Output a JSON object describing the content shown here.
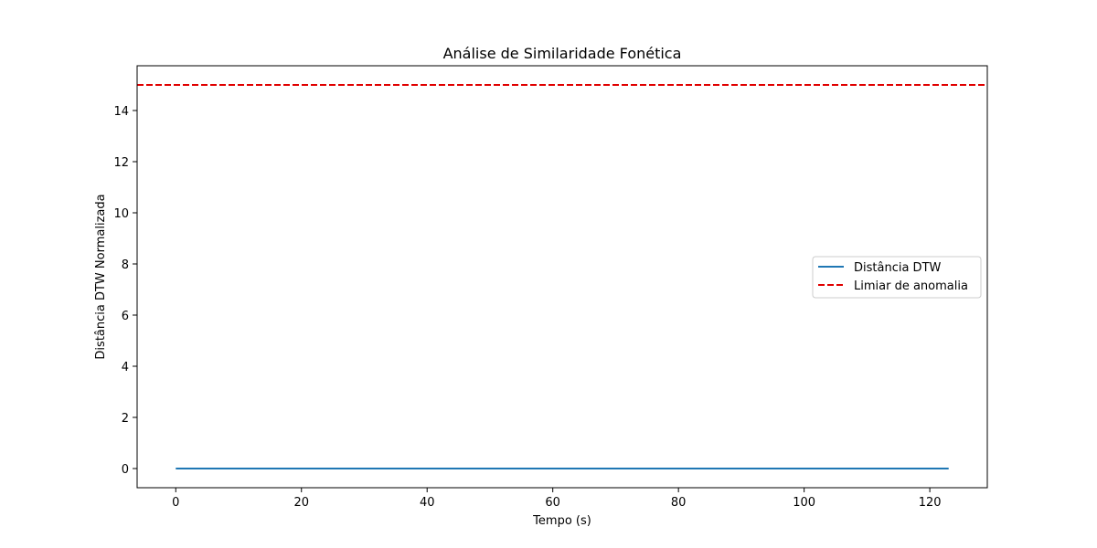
{
  "chart_data": {
    "type": "line",
    "title": "Análise de Similaridade Fonética",
    "xlabel": "Tempo (s)",
    "ylabel": "Distância DTW Normalizada",
    "xlim": [
      -6.15,
      129.15
    ],
    "ylim": [
      -0.75,
      15.75
    ],
    "xticks": [
      0,
      20,
      40,
      60,
      80,
      100,
      120
    ],
    "yticks": [
      0,
      2,
      4,
      6,
      8,
      10,
      12,
      14
    ],
    "grid": false,
    "legend_position": "center-right",
    "series": [
      {
        "name": "Distância DTW",
        "color": "#1f77b4",
        "style": "solid",
        "x": [
          0,
          123
        ],
        "y": [
          0,
          0
        ]
      }
    ],
    "reference_lines": [
      {
        "name": "Limiar de anomalia",
        "orientation": "horizontal",
        "y": 15,
        "color": "#e00000",
        "style": "dashed"
      }
    ]
  }
}
